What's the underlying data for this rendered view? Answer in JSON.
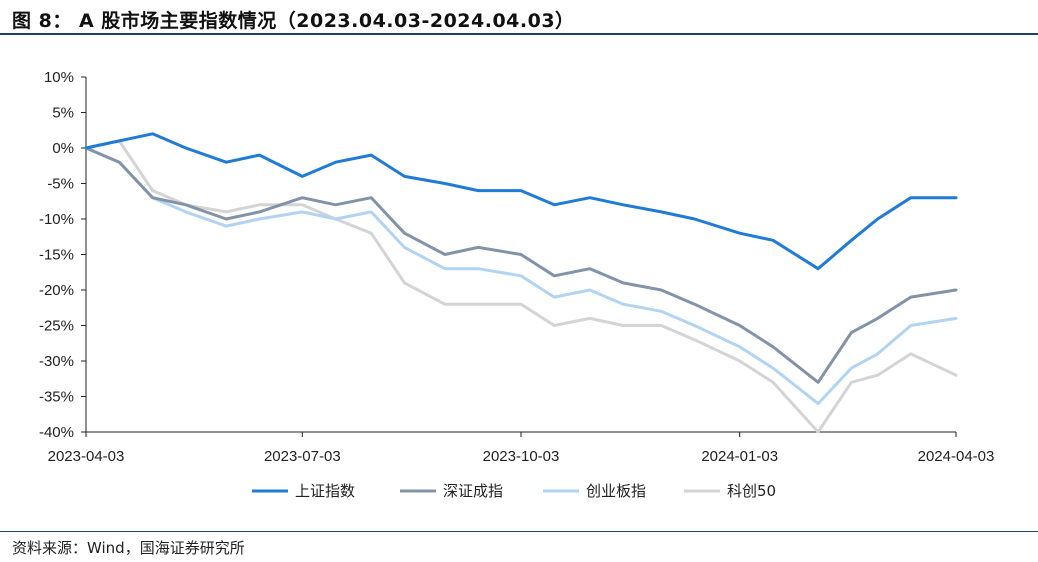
{
  "title": "图 8： A 股市场主要指数情况（2023.04.03-2024.04.03）",
  "source": "资料来源：Wind，国海证券研究所",
  "chart_data": {
    "type": "line",
    "ylim": [
      -40,
      10
    ],
    "yticks": [
      10,
      5,
      0,
      -5,
      -10,
      -15,
      -20,
      -25,
      -30,
      -35,
      -40
    ],
    "ytick_labels": [
      "10%",
      "5%",
      "0%",
      "-5%",
      "-10%",
      "-15%",
      "-20%",
      "-25%",
      "-30%",
      "-35%",
      "-40%"
    ],
    "x_dates": [
      "2023-04-03",
      "2023-04-17",
      "2023-05-01",
      "2023-05-15",
      "2023-06-01",
      "2023-06-15",
      "2023-07-03",
      "2023-07-17",
      "2023-08-01",
      "2023-08-15",
      "2023-09-01",
      "2023-09-15",
      "2023-10-03",
      "2023-10-17",
      "2023-11-01",
      "2023-11-15",
      "2023-12-01",
      "2023-12-15",
      "2024-01-03",
      "2024-01-17",
      "2024-02-05",
      "2024-02-19",
      "2024-03-01",
      "2024-03-15",
      "2024-04-03"
    ],
    "xtick_labels": [
      "2023-04-03",
      "2023-07-03",
      "2023-10-03",
      "2024-01-03",
      "2024-04-03"
    ],
    "legend_position": "bottom",
    "grid": false,
    "series": [
      {
        "name": "上证指数",
        "color": "#1f7bd6",
        "values": [
          0,
          1,
          2,
          0,
          -2,
          -1,
          -4,
          -2,
          -1,
          -4,
          -5,
          -6,
          -6,
          -8,
          -7,
          -8,
          -9,
          -10,
          -12,
          -13,
          -17,
          -13,
          -10,
          -7,
          -7
        ]
      },
      {
        "name": "深证成指",
        "color": "#8393a7",
        "values": [
          0,
          -2,
          -7,
          -8,
          -10,
          -9,
          -7,
          -8,
          -7,
          -12,
          -15,
          -14,
          -15,
          -18,
          -17,
          -19,
          -20,
          -22,
          -25,
          -28,
          -33,
          -26,
          -24,
          -21,
          -20
        ]
      },
      {
        "name": "创业板指",
        "color": "#b2d4f2",
        "values": [
          0,
          -2,
          -7,
          -9,
          -11,
          -10,
          -9,
          -10,
          -9,
          -14,
          -17,
          -17,
          -18,
          -21,
          -20,
          -22,
          -23,
          -25,
          -28,
          -31,
          -36,
          -31,
          -29,
          -25,
          -24
        ]
      },
      {
        "name": "科创50",
        "color": "#d4d4d4",
        "values": [
          0,
          1,
          -6,
          -8,
          -9,
          -8,
          -8,
          -10,
          -12,
          -19,
          -22,
          -22,
          -22,
          -25,
          -24,
          -25,
          -25,
          -27,
          -30,
          -33,
          -40,
          -33,
          -32,
          -29,
          -32
        ]
      }
    ]
  }
}
